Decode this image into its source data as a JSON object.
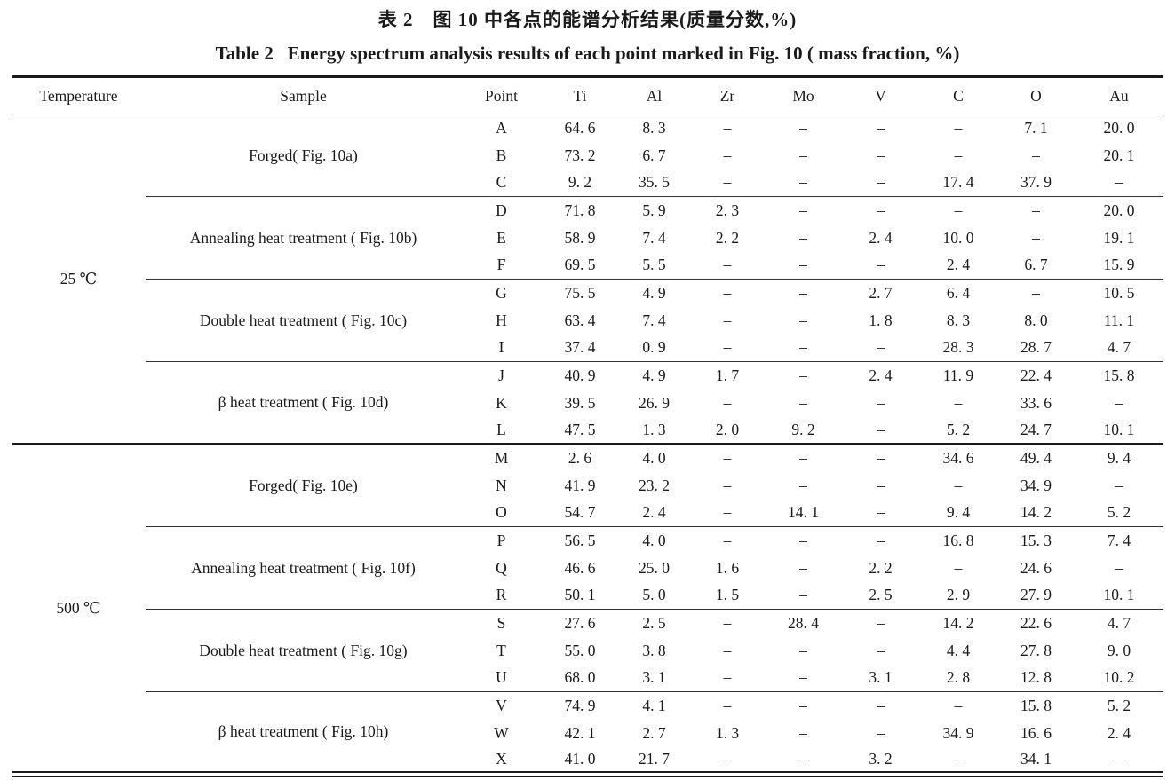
{
  "table": {
    "title_zh": "表 2　图 10 中各点的能谱分析结果(质量分数,%)",
    "title_en": "Table 2   Energy spectrum analysis results of each point marked in Fig. 10 ( mass fraction, %)",
    "columns": [
      "Temperature",
      "Sample",
      "Point",
      "Ti",
      "Al",
      "Zr",
      "Mo",
      "V",
      "C",
      "O",
      "Au"
    ],
    "sections": [
      {
        "temperature": "25 ℃",
        "groups": [
          {
            "sample": "Forged( Fig. 10a)",
            "rows": [
              {
                "point": "A",
                "values": [
                  "64. 6",
                  "8. 3",
                  "–",
                  "–",
                  "–",
                  "–",
                  "7. 1",
                  "20. 0"
                ]
              },
              {
                "point": "B",
                "values": [
                  "73. 2",
                  "6. 7",
                  "–",
                  "–",
                  "–",
                  "–",
                  "–",
                  "20. 1"
                ]
              },
              {
                "point": "C",
                "values": [
                  "9. 2",
                  "35. 5",
                  "–",
                  "–",
                  "–",
                  "17. 4",
                  "37. 9",
                  "–"
                ]
              }
            ]
          },
          {
            "sample": "Annealing heat treatment ( Fig. 10b)",
            "rows": [
              {
                "point": "D",
                "values": [
                  "71. 8",
                  "5. 9",
                  "2. 3",
                  "–",
                  "–",
                  "–",
                  "–",
                  "20. 0"
                ]
              },
              {
                "point": "E",
                "values": [
                  "58. 9",
                  "7. 4",
                  "2. 2",
                  "–",
                  "2. 4",
                  "10. 0",
                  "–",
                  "19. 1"
                ]
              },
              {
                "point": "F",
                "values": [
                  "69. 5",
                  "5. 5",
                  "–",
                  "–",
                  "–",
                  "2. 4",
                  "6. 7",
                  "15. 9"
                ]
              }
            ]
          },
          {
            "sample": "Double heat treatment ( Fig. 10c)",
            "rows": [
              {
                "point": "G",
                "values": [
                  "75. 5",
                  "4. 9",
                  "–",
                  "–",
                  "2. 7",
                  "6. 4",
                  "–",
                  "10. 5"
                ]
              },
              {
                "point": "H",
                "values": [
                  "63. 4",
                  "7. 4",
                  "–",
                  "–",
                  "1. 8",
                  "8. 3",
                  "8. 0",
                  "11. 1"
                ]
              },
              {
                "point": "I",
                "values": [
                  "37. 4",
                  "0. 9",
                  "–",
                  "–",
                  "–",
                  "28. 3",
                  "28. 7",
                  "4. 7"
                ]
              }
            ]
          },
          {
            "sample": "β heat treatment ( Fig. 10d)",
            "rows": [
              {
                "point": "J",
                "values": [
                  "40. 9",
                  "4. 9",
                  "1. 7",
                  "–",
                  "2. 4",
                  "11. 9",
                  "22. 4",
                  "15. 8"
                ]
              },
              {
                "point": "K",
                "values": [
                  "39. 5",
                  "26. 9",
                  "–",
                  "–",
                  "–",
                  "–",
                  "33. 6",
                  "–"
                ]
              },
              {
                "point": "L",
                "values": [
                  "47. 5",
                  "1. 3",
                  "2. 0",
                  "9. 2",
                  "–",
                  "5. 2",
                  "24. 7",
                  "10. 1"
                ]
              }
            ]
          }
        ]
      },
      {
        "temperature": "500 ℃",
        "groups": [
          {
            "sample": "Forged( Fig. 10e)",
            "rows": [
              {
                "point": "M",
                "values": [
                  "2. 6",
                  "4. 0",
                  "–",
                  "–",
                  "–",
                  "34. 6",
                  "49. 4",
                  "9. 4"
                ]
              },
              {
                "point": "N",
                "values": [
                  "41. 9",
                  "23. 2",
                  "–",
                  "–",
                  "–",
                  "–",
                  "34. 9",
                  "–"
                ]
              },
              {
                "point": "O",
                "values": [
                  "54. 7",
                  "2. 4",
                  "–",
                  "14. 1",
                  "–",
                  "9. 4",
                  "14. 2",
                  "5. 2"
                ]
              }
            ]
          },
          {
            "sample": "Annealing heat treatment ( Fig. 10f)",
            "rows": [
              {
                "point": "P",
                "values": [
                  "56. 5",
                  "4. 0",
                  "–",
                  "–",
                  "–",
                  "16. 8",
                  "15. 3",
                  "7. 4"
                ]
              },
              {
                "point": "Q",
                "values": [
                  "46. 6",
                  "25. 0",
                  "1. 6",
                  "–",
                  "2. 2",
                  "–",
                  "24. 6",
                  "–"
                ]
              },
              {
                "point": "R",
                "values": [
                  "50. 1",
                  "5. 0",
                  "1. 5",
                  "–",
                  "2. 5",
                  "2. 9",
                  "27. 9",
                  "10. 1"
                ]
              }
            ]
          },
          {
            "sample": "Double heat treatment ( Fig. 10g)",
            "rows": [
              {
                "point": "S",
                "values": [
                  "27. 6",
                  "2. 5",
                  "–",
                  "28. 4",
                  "–",
                  "14. 2",
                  "22. 6",
                  "4. 7"
                ]
              },
              {
                "point": "T",
                "values": [
                  "55. 0",
                  "3. 8",
                  "–",
                  "–",
                  "–",
                  "4. 4",
                  "27. 8",
                  "9. 0"
                ]
              },
              {
                "point": "U",
                "values": [
                  "68. 0",
                  "3. 1",
                  "–",
                  "–",
                  "3. 1",
                  "2. 8",
                  "12. 8",
                  "10. 2"
                ]
              }
            ]
          },
          {
            "sample": "β heat treatment ( Fig. 10h)",
            "rows": [
              {
                "point": "V",
                "values": [
                  "74. 9",
                  "4. 1",
                  "–",
                  "–",
                  "–",
                  "–",
                  "15. 8",
                  "5. 2"
                ]
              },
              {
                "point": "W",
                "values": [
                  "42. 1",
                  "2. 7",
                  "1. 3",
                  "–",
                  "–",
                  "34. 9",
                  "16. 6",
                  "2. 4"
                ]
              },
              {
                "point": "X",
                "values": [
                  "41. 0",
                  "21. 7",
                  "–",
                  "–",
                  "3. 2",
                  "–",
                  "34. 1",
                  "–"
                ]
              }
            ]
          }
        ]
      }
    ]
  }
}
